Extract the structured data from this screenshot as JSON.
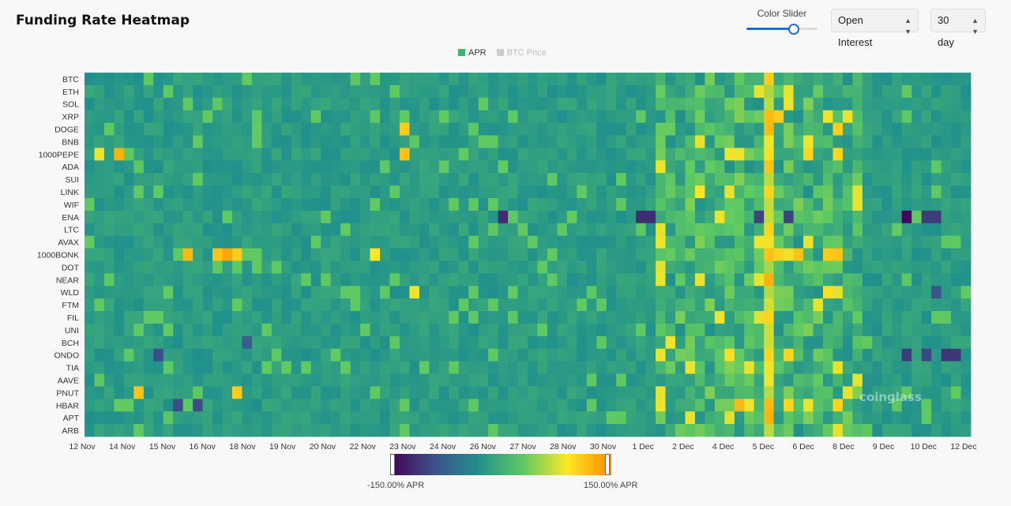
{
  "page": {
    "title": "Funding Rate Heatmap"
  },
  "controls": {
    "slider_label": "Color Slider",
    "slider_value": 0.65,
    "metric_select": "Open Interest",
    "range_select": "30 day",
    "accent": "#1f6fd1"
  },
  "legend": {
    "items": [
      {
        "label": "APR",
        "color": "#3cb371",
        "active": true
      },
      {
        "label": "BTC Price",
        "color": "#cccccc",
        "active": false
      }
    ]
  },
  "watermark": "coinglass",
  "colorbar": {
    "min_label": "-150.00% APR",
    "max_label": "150.00% APR"
  },
  "chart_data": {
    "type": "heatmap",
    "title": "Funding Rate Heatmap",
    "value_unit": "APR",
    "color_range": [
      -150,
      150
    ],
    "y_categories": [
      "BTC",
      "ETH",
      "SOL",
      "XRP",
      "DOGE",
      "BNB",
      "1000PEPE",
      "ADA",
      "SUI",
      "LINK",
      "WIF",
      "ENA",
      "LTC",
      "AVAX",
      "1000BONK",
      "DOT",
      "NEAR",
      "WLD",
      "FTM",
      "FIL",
      "UNI",
      "BCH",
      "ONDO",
      "TIA",
      "AAVE",
      "PNUT",
      "HBAR",
      "APT",
      "ARB"
    ],
    "x_tick_labels": [
      "12 Nov",
      "14 Nov",
      "15 Nov",
      "16 Nov",
      "18 Nov",
      "19 Nov",
      "20 Nov",
      "22 Nov",
      "23 Nov",
      "24 Nov",
      "26 Nov",
      "27 Nov",
      "28 Nov",
      "30 Nov",
      "1 Dec",
      "2 Dec",
      "4 Dec",
      "5 Dec",
      "6 Dec",
      "8 Dec",
      "9 Dec",
      "10 Dec",
      "12 Dec"
    ],
    "columns": 90,
    "base_value": 10,
    "hot_column": 69,
    "highlights": [
      {
        "row": "BTC",
        "col": 69,
        "value": 115
      },
      {
        "row": "XRP",
        "col": 69,
        "value": 125
      },
      {
        "row": "XRP",
        "col": 70,
        "value": 115
      },
      {
        "row": "DOGE",
        "col": 32,
        "value": 115
      },
      {
        "row": "DOGE",
        "col": 69,
        "value": 125
      },
      {
        "row": "DOGE",
        "col": 76,
        "value": 115
      },
      {
        "row": "1000PEPE",
        "col": 1,
        "value": 95
      },
      {
        "row": "1000PEPE",
        "col": 3,
        "value": 130
      },
      {
        "row": "1000PEPE",
        "col": 32,
        "value": 120
      },
      {
        "row": "1000PEPE",
        "col": 65,
        "value": 95
      },
      {
        "row": "1000PEPE",
        "col": 66,
        "value": 95
      },
      {
        "row": "1000PEPE",
        "col": 69,
        "value": 105
      },
      {
        "row": "1000PEPE",
        "col": 73,
        "value": 110
      },
      {
        "row": "1000PEPE",
        "col": 76,
        "value": 110
      },
      {
        "row": "ADA",
        "col": 69,
        "value": 120
      },
      {
        "row": "LINK",
        "col": 62,
        "value": 100
      },
      {
        "row": "LINK",
        "col": 69,
        "value": 110
      },
      {
        "row": "ENA",
        "col": 42,
        "value": -110
      },
      {
        "row": "ENA",
        "col": 56,
        "value": -110
      },
      {
        "row": "ENA",
        "col": 57,
        "value": -110
      },
      {
        "row": "ENA",
        "col": 68,
        "value": -90
      },
      {
        "row": "ENA",
        "col": 71,
        "value": -90
      },
      {
        "row": "ENA",
        "col": 83,
        "value": -145
      },
      {
        "row": "ENA",
        "col": 85,
        "value": -95
      },
      {
        "row": "ENA",
        "col": 86,
        "value": -95
      },
      {
        "row": "LTC",
        "col": 69,
        "value": 110
      },
      {
        "row": "1000BONK",
        "col": 10,
        "value": 125
      },
      {
        "row": "1000BONK",
        "col": 13,
        "value": 120
      },
      {
        "row": "1000BONK",
        "col": 14,
        "value": 135
      },
      {
        "row": "1000BONK",
        "col": 15,
        "value": 115
      },
      {
        "row": "1000BONK",
        "col": 29,
        "value": 100
      },
      {
        "row": "1000BONK",
        "col": 69,
        "value": 120
      },
      {
        "row": "1000BONK",
        "col": 70,
        "value": 110
      },
      {
        "row": "1000BONK",
        "col": 72,
        "value": 120
      },
      {
        "row": "1000BONK",
        "col": 75,
        "value": 115
      },
      {
        "row": "1000BONK",
        "col": 76,
        "value": 120
      },
      {
        "row": "WLD",
        "col": 33,
        "value": 95
      },
      {
        "row": "WLD",
        "col": 75,
        "value": 105
      },
      {
        "row": "WLD",
        "col": 86,
        "value": -70
      },
      {
        "row": "FIL",
        "col": 69,
        "value": 110
      },
      {
        "row": "BCH",
        "col": 16,
        "value": -60
      },
      {
        "row": "ONDO",
        "col": 7,
        "value": -80
      },
      {
        "row": "ONDO",
        "col": 65,
        "value": 105
      },
      {
        "row": "ONDO",
        "col": 69,
        "value": 110
      },
      {
        "row": "ONDO",
        "col": 71,
        "value": 110
      },
      {
        "row": "ONDO",
        "col": 83,
        "value": -95
      },
      {
        "row": "ONDO",
        "col": 85,
        "value": -85
      },
      {
        "row": "ONDO",
        "col": 87,
        "value": -100
      },
      {
        "row": "ONDO",
        "col": 88,
        "value": -100
      },
      {
        "row": "PNUT",
        "col": 5,
        "value": 120
      },
      {
        "row": "PNUT",
        "col": 15,
        "value": 115
      },
      {
        "row": "HBAR",
        "col": 9,
        "value": -80
      },
      {
        "row": "HBAR",
        "col": 11,
        "value": -80
      },
      {
        "row": "HBAR",
        "col": 66,
        "value": 125
      },
      {
        "row": "HBAR",
        "col": 69,
        "value": 125
      },
      {
        "row": "HBAR",
        "col": 71,
        "value": 110
      },
      {
        "row": "HBAR",
        "col": 76,
        "value": 110
      }
    ]
  }
}
